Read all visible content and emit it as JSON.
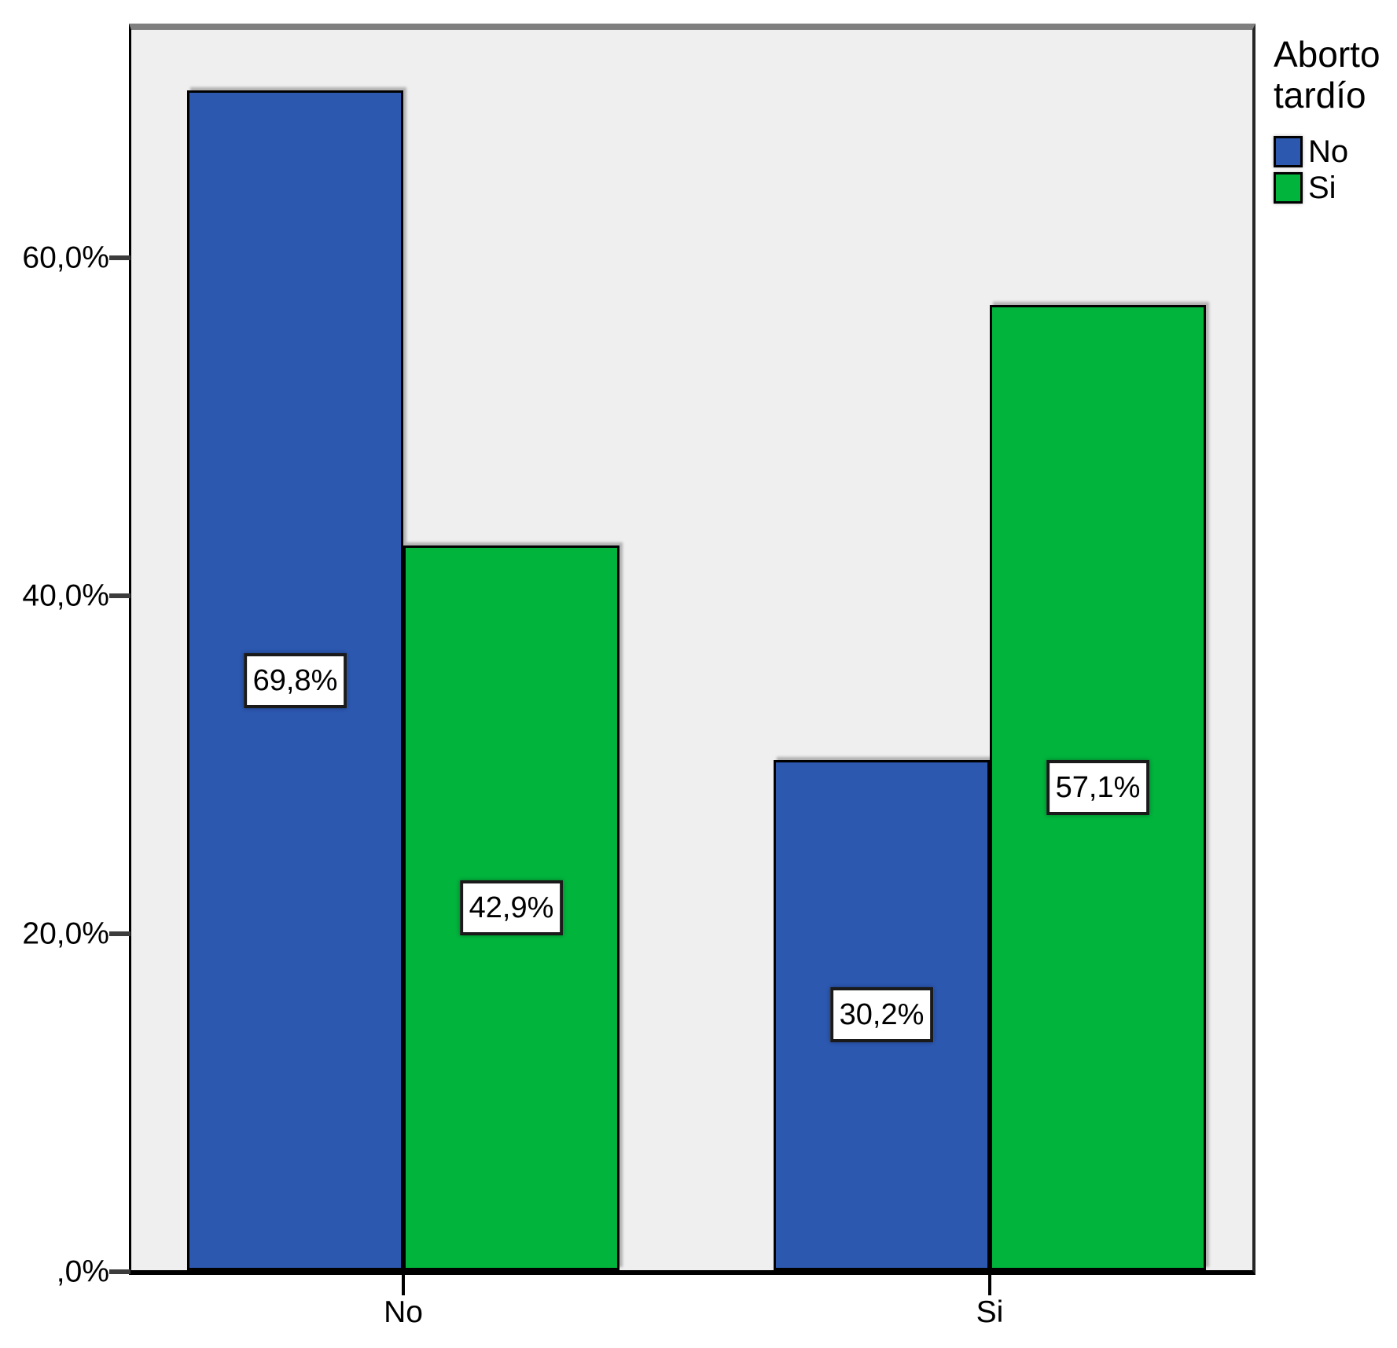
{
  "chart_data": {
    "type": "bar",
    "subtype": "grouped-vertical",
    "title": "",
    "categories": [
      "No",
      "Si"
    ],
    "series": [
      {
        "name": "No",
        "color": "#2C58B0",
        "values": [
          69.8,
          30.2
        ],
        "value_labels": [
          "69,8%",
          "30,2%"
        ]
      },
      {
        "name": "Si",
        "color": "#00B43C",
        "values": [
          42.9,
          57.1
        ],
        "value_labels": [
          "42,9%",
          "57,1%"
        ]
      }
    ],
    "legend": {
      "title": "Aborto tardío",
      "position": "right",
      "entries": [
        "No",
        "Si"
      ]
    },
    "y_axis": {
      "label": "",
      "ticks": [
        {
          "value": 0,
          "label": ",0%"
        },
        {
          "value": 20,
          "label": "20,0%"
        },
        {
          "value": 40,
          "label": "40,0%"
        },
        {
          "value": 60,
          "label": "60,0%"
        }
      ],
      "range": [
        0,
        73.5
      ],
      "decimal_separator": ","
    },
    "x_axis": {
      "label": "",
      "tick_labels": [
        "No",
        "Si"
      ]
    },
    "grid": false,
    "plot_background": "#EFEFEF",
    "outer_background": "#FFFFFF",
    "frame_color": "#7F7F7F"
  }
}
